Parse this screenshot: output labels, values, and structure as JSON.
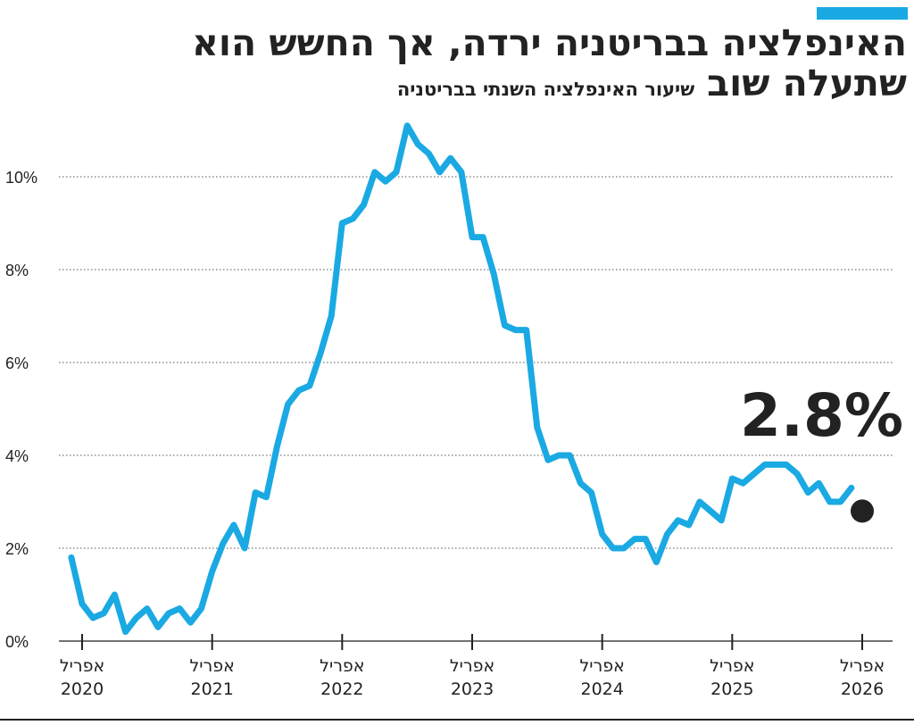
{
  "header": {
    "title_line1": "האינפלציה בבריטניה ירדה, אך החשש הוא",
    "title_line2": "שתעלה שוב",
    "subtitle": "שיעור האינפלציה השנתי בבריטניה",
    "accent_color": "#1aa9e3"
  },
  "chart_data": {
    "type": "line",
    "title": "האינפלציה בבריטניה ירדה, אך החשש הוא שתעלה שוב",
    "subtitle": "שיעור האינפלציה השנתי בבריטניה",
    "xlabel": "",
    "ylabel": "",
    "ylim": [
      0,
      11.5
    ],
    "yticks": [
      {
        "value": 0,
        "label": "0%"
      },
      {
        "value": 2,
        "label": "2%"
      },
      {
        "value": 4,
        "label": "4%"
      },
      {
        "value": 6,
        "label": "6%"
      },
      {
        "value": 8,
        "label": "8%"
      },
      {
        "value": 10,
        "label": "10%"
      }
    ],
    "xticks": [
      {
        "date": "2020-04",
        "month": "אפריל",
        "year": "2020"
      },
      {
        "date": "2021-04",
        "month": "אפריל",
        "year": "2021"
      },
      {
        "date": "2022-04",
        "month": "אפריל",
        "year": "2022"
      },
      {
        "date": "2023-04",
        "month": "אפריל",
        "year": "2023"
      },
      {
        "date": "2024-04",
        "month": "אפריל",
        "year": "2024"
      },
      {
        "date": "2025-04",
        "month": "אפריל",
        "year": "2025"
      },
      {
        "date": "2026-04",
        "month": "אפריל",
        "year": "2026"
      }
    ],
    "grid": "horizontal-dotted",
    "line_color": "#1aa9e3",
    "series": [
      {
        "name": "",
        "x": [
          "2020-04",
          "2020-05",
          "2020-06",
          "2020-07",
          "2020-08",
          "2020-09",
          "2020-10",
          "2020-11",
          "2020-12",
          "2021-01",
          "2021-02",
          "2021-03",
          "2021-04",
          "2021-05",
          "2021-06",
          "2021-07",
          "2021-08",
          "2021-09",
          "2021-10",
          "2021-11",
          "2021-12",
          "2022-01",
          "2022-02",
          "2022-03",
          "2022-04",
          "2022-05",
          "2022-06",
          "2022-07",
          "2022-08",
          "2022-09",
          "2022-10",
          "2022-11",
          "2022-12",
          "2023-01",
          "2023-02",
          "2023-03",
          "2023-04",
          "2023-05",
          "2023-06",
          "2023-07",
          "2023-08",
          "2023-09",
          "2023-10",
          "2023-11",
          "2023-12",
          "2024-01",
          "2024-02",
          "2024-03",
          "2024-04",
          "2024-05",
          "2024-06",
          "2024-07",
          "2024-08",
          "2024-09",
          "2024-10",
          "2024-11",
          "2024-12",
          "2025-01",
          "2025-02",
          "2025-03",
          "2025-04",
          "2025-05",
          "2025-06",
          "2025-07",
          "2025-08",
          "2025-09",
          "2025-10",
          "2025-11",
          "2025-12",
          "2026-01",
          "2026-02",
          "2026-03"
        ],
        "values": [
          0.8,
          0.5,
          0.6,
          1.0,
          0.2,
          0.5,
          0.7,
          0.3,
          0.6,
          0.7,
          0.4,
          0.7,
          1.5,
          2.1,
          2.5,
          2.0,
          3.2,
          3.1,
          4.2,
          5.1,
          5.4,
          5.5,
          6.2,
          7.0,
          9.0,
          9.1,
          9.4,
          10.1,
          9.9,
          10.1,
          11.1,
          10.7,
          10.5,
          10.1,
          10.4,
          10.1,
          8.7,
          8.7,
          7.9,
          6.8,
          6.7,
          6.7,
          4.6,
          3.9,
          4.0,
          4.0,
          3.4,
          3.2,
          2.3,
          2.0,
          2.0,
          2.2,
          2.2,
          1.7,
          2.3,
          2.6,
          2.5,
          3.0,
          2.8,
          2.6,
          3.5,
          3.4,
          3.6,
          3.8,
          3.8,
          3.8,
          3.6,
          3.2,
          3.4,
          3.0,
          3.0,
          3.3
        ]
      }
    ],
    "series_start": {
      "x": "2020-03",
      "value": 1.8
    },
    "endpoint": {
      "x": "2026-04",
      "value": 2.8,
      "label": "2.8%"
    }
  }
}
